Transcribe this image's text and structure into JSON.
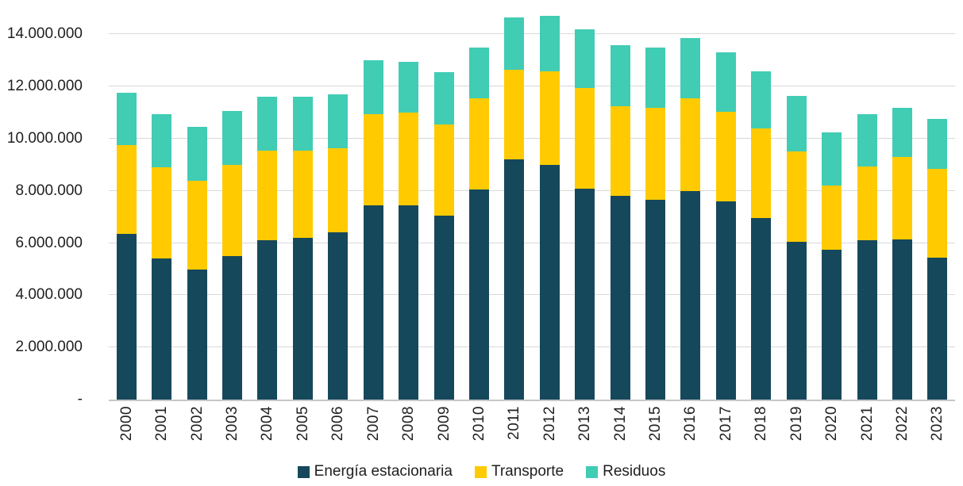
{
  "chart_data": {
    "type": "bar",
    "stacked": true,
    "title": "",
    "xlabel": "",
    "ylabel": "",
    "categories": [
      "2000",
      "2001",
      "2002",
      "2003",
      "2004",
      "2005",
      "2006",
      "2007",
      "2008",
      "2009",
      "2010",
      "2011",
      "2012",
      "2013",
      "2014",
      "2015",
      "2016",
      "2017",
      "2018",
      "2019",
      "2020",
      "2021",
      "2022",
      "2023"
    ],
    "series": [
      {
        "name": "Energía estacionaria",
        "color": "#16485C",
        "values": [
          6350000,
          5400000,
          5000000,
          5500000,
          6100000,
          6200000,
          6400000,
          7450000,
          7450000,
          7050000,
          8050000,
          9200000,
          9000000,
          8100000,
          7800000,
          7650000,
          8000000,
          7600000,
          6950000,
          6050000,
          5750000,
          6100000,
          6150000,
          5450000
        ]
      },
      {
        "name": "Transporte",
        "color": "#FFCB00",
        "values": [
          3400000,
          3500000,
          3400000,
          3500000,
          3450000,
          3350000,
          3250000,
          3500000,
          3550000,
          3500000,
          3500000,
          3450000,
          3600000,
          3850000,
          3450000,
          3550000,
          3550000,
          3450000,
          3450000,
          3450000,
          2450000,
          2850000,
          3150000,
          3400000
        ]
      },
      {
        "name": "Residuos",
        "color": "#41CCB4",
        "values": [
          2000000,
          2050000,
          2050000,
          2050000,
          2050000,
          2050000,
          2050000,
          2050000,
          1950000,
          2000000,
          1950000,
          2000000,
          2100000,
          2250000,
          2350000,
          2300000,
          2300000,
          2250000,
          2200000,
          2150000,
          2050000,
          2000000,
          1900000,
          1900000
        ]
      }
    ],
    "y_axis": {
      "ticks": [
        {
          "value": 14000000,
          "label": "14.000.000"
        },
        {
          "value": 12000000,
          "label": "12.000.000"
        },
        {
          "value": 10000000,
          "label": "10.000.000"
        },
        {
          "value": 8000000,
          "label": "8.000.000"
        },
        {
          "value": 6000000,
          "label": "6.000.000"
        },
        {
          "value": 4000000,
          "label": "4.000.000"
        },
        {
          "value": 2000000,
          "label": "2.000.000"
        },
        {
          "value": 0,
          "label": "-"
        }
      ],
      "range": [
        0,
        15320000
      ],
      "gridlines": true
    },
    "legend": {
      "position": "bottom"
    },
    "colors": {
      "background": "#ffffff",
      "gridline": "#d9d9d9",
      "axis_line": "#c6c6c6",
      "text": "#1f1f1f"
    }
  }
}
